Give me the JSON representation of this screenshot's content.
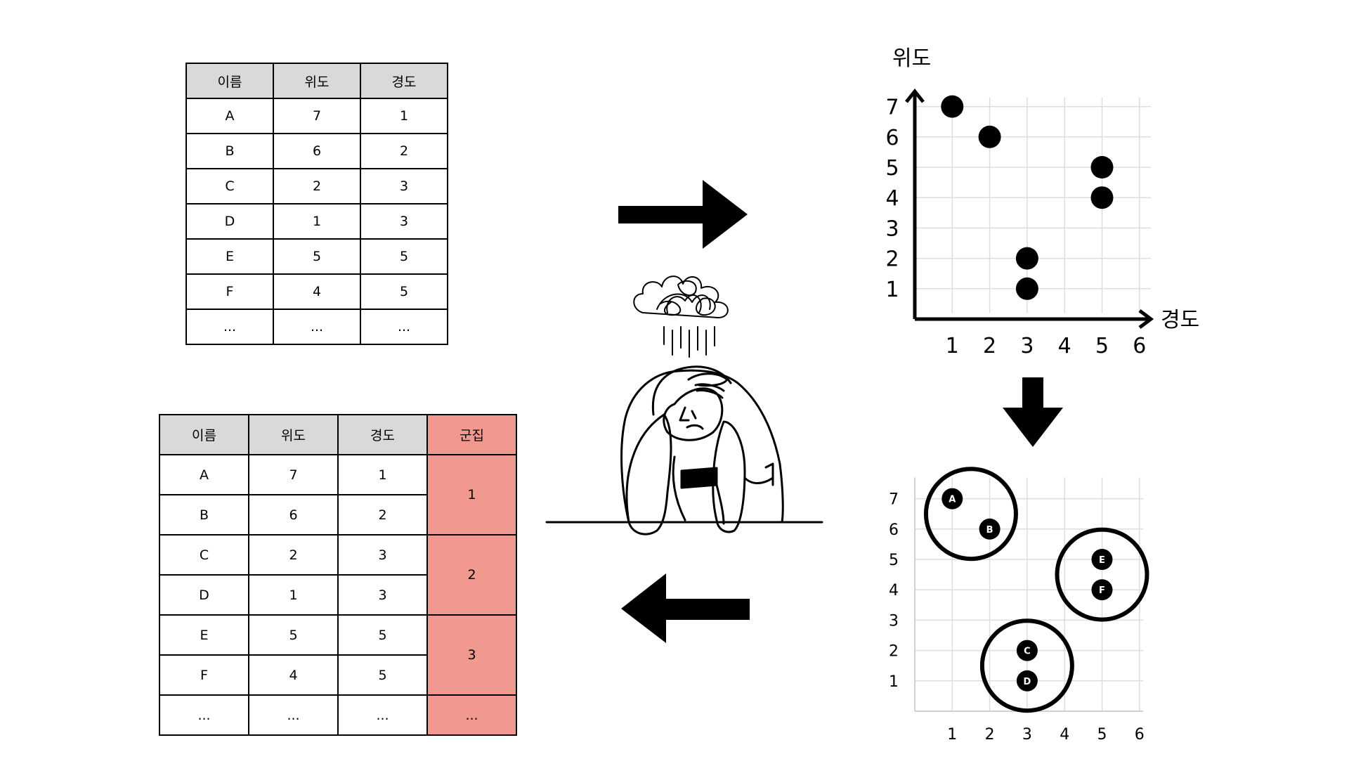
{
  "colors": {
    "cluster_fill": "#f1998e",
    "header_fill": "#d9d9d9",
    "ink": "#000000",
    "grid": "#dddddd"
  },
  "icons": {
    "right_arrow": "arrow-right-icon",
    "down_arrow": "arrow-down-icon",
    "left_arrow": "arrow-left-icon",
    "person": "stressed-person-illustration"
  },
  "raw_table": {
    "headers": [
      "이름",
      "위도",
      "경도"
    ],
    "rows": [
      [
        "A",
        "7",
        "1"
      ],
      [
        "B",
        "6",
        "2"
      ],
      [
        "C",
        "2",
        "3"
      ],
      [
        "D",
        "1",
        "3"
      ],
      [
        "E",
        "5",
        "5"
      ],
      [
        "F",
        "4",
        "5"
      ],
      [
        "...",
        "...",
        "..."
      ]
    ]
  },
  "clustered_table": {
    "headers": [
      "이름",
      "위도",
      "경도",
      "군집"
    ],
    "rows": [
      [
        "A",
        "7",
        "1"
      ],
      [
        "B",
        "6",
        "2"
      ],
      [
        "C",
        "2",
        "3"
      ],
      [
        "D",
        "1",
        "3"
      ],
      [
        "E",
        "5",
        "5"
      ],
      [
        "F",
        "4",
        "5"
      ],
      [
        "...",
        "...",
        "..."
      ]
    ],
    "clusters": [
      {
        "label": "1",
        "span": 2
      },
      {
        "label": "2",
        "span": 2
      },
      {
        "label": "3",
        "span": 2
      },
      {
        "label": "...",
        "span": 1
      }
    ]
  },
  "chart_data": [
    {
      "type": "scatter",
      "xlabel": "경도",
      "ylabel": "위도",
      "xlim": [
        0,
        6
      ],
      "ylim": [
        0,
        7
      ],
      "x_ticks": [
        "1",
        "2",
        "3",
        "4",
        "5",
        "6"
      ],
      "y_ticks": [
        "1",
        "2",
        "3",
        "4",
        "5",
        "6",
        "7"
      ],
      "grid": true,
      "points": [
        {
          "x": 1,
          "y": 7
        },
        {
          "x": 2,
          "y": 6
        },
        {
          "x": 3,
          "y": 2
        },
        {
          "x": 3,
          "y": 1
        },
        {
          "x": 5,
          "y": 5
        },
        {
          "x": 5,
          "y": 4
        }
      ]
    },
    {
      "type": "scatter",
      "xlim": [
        0,
        6
      ],
      "ylim": [
        0,
        7
      ],
      "x_ticks": [
        "1",
        "2",
        "3",
        "4",
        "5",
        "6"
      ],
      "y_ticks": [
        "1",
        "2",
        "3",
        "4",
        "5",
        "6",
        "7"
      ],
      "grid": true,
      "points": [
        {
          "x": 1,
          "y": 7,
          "label": "A"
        },
        {
          "x": 2,
          "y": 6,
          "label": "B"
        },
        {
          "x": 3,
          "y": 2,
          "label": "C"
        },
        {
          "x": 3,
          "y": 1,
          "label": "D"
        },
        {
          "x": 5,
          "y": 5,
          "label": "E"
        },
        {
          "x": 5,
          "y": 4,
          "label": "F"
        }
      ],
      "clusters": [
        {
          "members": [
            "A",
            "B"
          ]
        },
        {
          "members": [
            "C",
            "D"
          ]
        },
        {
          "members": [
            "E",
            "F"
          ]
        }
      ]
    }
  ]
}
